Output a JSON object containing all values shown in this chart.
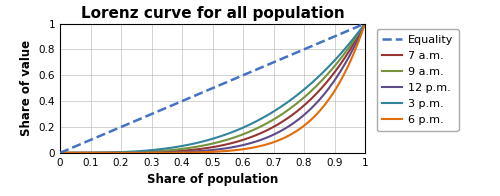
{
  "title": "Lorenz curve for all population",
  "xlabel": "Share of population",
  "ylabel": "Share of value",
  "xlim": [
    0,
    1.0
  ],
  "ylim": [
    0,
    1.0
  ],
  "xticks": [
    0,
    0.1,
    0.2,
    0.3,
    0.4,
    0.5,
    0.6,
    0.7,
    0.8,
    0.9,
    1
  ],
  "yticks": [
    0,
    0.2,
    0.4,
    0.6,
    0.8,
    1
  ],
  "equality_color": "#4472C4",
  "equality_label": "Equality",
  "curves": [
    {
      "label": "7 a.m.",
      "color": "#943634",
      "power": 4.5
    },
    {
      "label": "9 a.m.",
      "color": "#76923C",
      "power": 3.8
    },
    {
      "label": "12 p.m.",
      "color": "#5F4B8B",
      "power": 5.5
    },
    {
      "label": "3 p.m.",
      "color": "#31849B",
      "power": 3.2
    },
    {
      "label": "6 p.m.",
      "color": "#E36C0A",
      "power": 7.0
    }
  ],
  "title_fontsize": 11,
  "label_fontsize": 8.5,
  "tick_fontsize": 7.5,
  "legend_fontsize": 8
}
